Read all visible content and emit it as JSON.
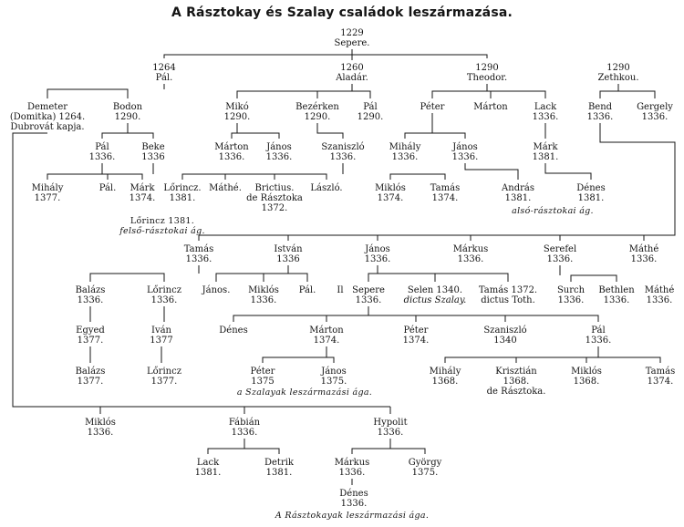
{
  "title": "A Rásztokay és Szalay családok leszármazása.",
  "colors": {
    "ink": "#141414",
    "paper": "#ffffff"
  },
  "nodes": [
    {
      "id": "sepere",
      "lines": [
        "1229",
        "Sepere."
      ]
    },
    {
      "id": "pal1",
      "lines": [
        "1264",
        "Pál."
      ]
    },
    {
      "id": "aladar",
      "lines": [
        "1260",
        "Aladár."
      ]
    },
    {
      "id": "theodor",
      "lines": [
        "1290",
        "Theodor."
      ]
    },
    {
      "id": "zethkou",
      "lines": [
        "1290",
        "Zethkou."
      ]
    },
    {
      "id": "demeter",
      "lines": [
        "Demeter",
        "(Domitka) 1264.",
        "Dubrovát kapja."
      ]
    },
    {
      "id": "bodon",
      "lines": [
        "Bodon",
        "1290."
      ]
    },
    {
      "id": "miko",
      "lines": [
        "Mikó",
        "1290."
      ]
    },
    {
      "id": "bezerken",
      "lines": [
        "Bezérken",
        "1290."
      ]
    },
    {
      "id": "pal2",
      "lines": [
        "Pál",
        "1290."
      ]
    },
    {
      "id": "peter1",
      "lines": [
        "Péter"
      ]
    },
    {
      "id": "marton1",
      "lines": [
        "Márton"
      ]
    },
    {
      "id": "lack1",
      "lines": [
        "Lack",
        "1336."
      ]
    },
    {
      "id": "bend",
      "lines": [
        "Bend",
        "1336."
      ]
    },
    {
      "id": "gergely",
      "lines": [
        "Gergely",
        "1336."
      ]
    },
    {
      "id": "pal3",
      "lines": [
        "Pál",
        "1336."
      ]
    },
    {
      "id": "beke",
      "lines": [
        "Beke",
        "1336"
      ]
    },
    {
      "id": "marton2",
      "lines": [
        "Márton",
        "1336."
      ]
    },
    {
      "id": "janos1",
      "lines": [
        "János",
        "1336."
      ]
    },
    {
      "id": "szaniszlo1",
      "lines": [
        "Szaniszló",
        "1336."
      ]
    },
    {
      "id": "mihaly1",
      "lines": [
        "Mihály",
        "1336."
      ]
    },
    {
      "id": "janos2",
      "lines": [
        "János",
        "1336."
      ]
    },
    {
      "id": "mark1",
      "lines": [
        "Márk",
        "1381."
      ]
    },
    {
      "id": "mihaly2",
      "lines": [
        "Mihály",
        "1377."
      ]
    },
    {
      "id": "pal4",
      "lines": [
        "Pál."
      ]
    },
    {
      "id": "mark2",
      "lines": [
        "Márk",
        "1374."
      ]
    },
    {
      "id": "lorincz1",
      "lines": [
        "Lőrincz.",
        "1381."
      ]
    },
    {
      "id": "mathe1",
      "lines": [
        "Máthé."
      ]
    },
    {
      "id": "brictius",
      "lines": [
        "Brictius.",
        "de Rásztoka",
        "1372."
      ]
    },
    {
      "id": "laszlo",
      "lines": [
        "László."
      ]
    },
    {
      "id": "miklos1",
      "lines": [
        "Miklós",
        "1374."
      ]
    },
    {
      "id": "tamas1",
      "lines": [
        "Tamás",
        "1374."
      ]
    },
    {
      "id": "andras",
      "lines": [
        "András",
        "1381."
      ]
    },
    {
      "id": "denes1",
      "lines": [
        "Dénes",
        "1381."
      ]
    },
    {
      "id": "tamas2",
      "lines": [
        "Tamás",
        "1336."
      ]
    },
    {
      "id": "istvan",
      "lines": [
        "István",
        "1336"
      ]
    },
    {
      "id": "janos3",
      "lines": [
        "János",
        "1336."
      ]
    },
    {
      "id": "markus1",
      "lines": [
        "Márkus",
        "1336."
      ]
    },
    {
      "id": "serefel",
      "lines": [
        "Serefel",
        "1336."
      ]
    },
    {
      "id": "mathe2",
      "lines": [
        "Máthé",
        "1336."
      ]
    },
    {
      "id": "balazs1",
      "lines": [
        "Balázs",
        "1336."
      ]
    },
    {
      "id": "lorincz2",
      "lines": [
        "Lőrincz",
        "1336."
      ]
    },
    {
      "id": "janos4",
      "lines": [
        "János."
      ]
    },
    {
      "id": "miklos2",
      "lines": [
        "Miklós",
        "1336."
      ]
    },
    {
      "id": "pal5",
      "lines": [
        "Pál."
      ]
    },
    {
      "id": "ll",
      "lines": [
        "Il"
      ]
    },
    {
      "id": "sepere2",
      "lines": [
        "Sepere",
        "1336."
      ]
    },
    {
      "id": "selen",
      "lines": [
        "Selen 1340.",
        "dictus Szalay."
      ]
    },
    {
      "id": "tamas3",
      "lines": [
        "Tamás 1372.",
        "dictus Toth."
      ]
    },
    {
      "id": "surch",
      "lines": [
        "Surch",
        "1336."
      ]
    },
    {
      "id": "bethlen",
      "lines": [
        "Bethlen",
        "1336."
      ]
    },
    {
      "id": "mathe3",
      "lines": [
        "Máthé",
        "1336."
      ]
    },
    {
      "id": "egyed",
      "lines": [
        "Egyed",
        "1377."
      ]
    },
    {
      "id": "ivan",
      "lines": [
        "Iván",
        "1377"
      ]
    },
    {
      "id": "denes2",
      "lines": [
        "Dénes"
      ]
    },
    {
      "id": "marton3",
      "lines": [
        "Márton",
        "1374."
      ]
    },
    {
      "id": "peter2",
      "lines": [
        "Péter",
        "1374."
      ]
    },
    {
      "id": "szaniszlo2",
      "lines": [
        "Szaniszló",
        "1340"
      ]
    },
    {
      "id": "pal6",
      "lines": [
        "Pál",
        "1336."
      ]
    },
    {
      "id": "balazs2",
      "lines": [
        "Balázs",
        "1377."
      ]
    },
    {
      "id": "lorincz3",
      "lines": [
        "Lőrincz",
        "1377."
      ]
    },
    {
      "id": "peter3",
      "lines": [
        "Péter",
        "1375"
      ]
    },
    {
      "id": "janos5",
      "lines": [
        "János",
        "1375."
      ]
    },
    {
      "id": "mihaly3",
      "lines": [
        "Mihály",
        "1368."
      ]
    },
    {
      "id": "krisztian",
      "lines": [
        "Krisztián",
        "1368.",
        "de Rásztoka."
      ]
    },
    {
      "id": "miklos3",
      "lines": [
        "Miklós",
        "1368."
      ]
    },
    {
      "id": "tamas4",
      "lines": [
        "Tamás",
        "1374."
      ]
    },
    {
      "id": "miklos4",
      "lines": [
        "Miklós",
        "1336."
      ]
    },
    {
      "id": "fabian",
      "lines": [
        "Fábián",
        "1336."
      ]
    },
    {
      "id": "hypolit",
      "lines": [
        "Hypolit",
        "1336."
      ]
    },
    {
      "id": "lack2",
      "lines": [
        "Lack",
        "1381."
      ]
    },
    {
      "id": "detrik",
      "lines": [
        "Detrik",
        "1381."
      ]
    },
    {
      "id": "markus2",
      "lines": [
        "Márkus",
        "1336."
      ]
    },
    {
      "id": "gyorgy",
      "lines": [
        "György",
        "1375."
      ]
    },
    {
      "id": "denes3",
      "lines": [
        "Dénes",
        "1336."
      ]
    }
  ],
  "captions": {
    "felso": "Lőrincz 1381.",
    "felso2": "felső-rásztokai ág.",
    "also": "alsó-rásztokai ág.",
    "szalay": "a Szalayak leszármazási ága.",
    "rasztokay": "A Rásztokayak leszármazási ága."
  }
}
